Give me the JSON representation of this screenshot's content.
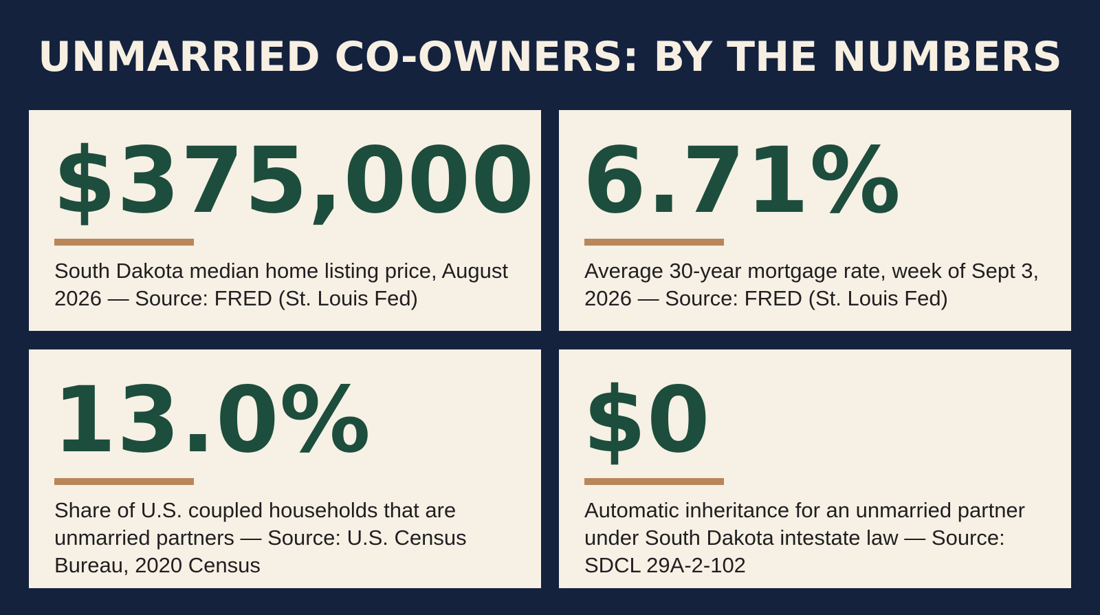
{
  "header": {
    "title": "UNMARRIED CO-OWNERS: BY THE NUMBERS"
  },
  "stats": [
    {
      "value": "$375,000",
      "description": "South Dakota median home listing price, August 2026 — Source: FRED (St. Louis Fed)"
    },
    {
      "value": "6.71%",
      "description": "Average 30-year mortgage rate, week of Sept 3, 2026 — Source: FRED (St. Louis Fed)"
    },
    {
      "value": "13.0%",
      "description": "Share of U.S. coupled households that are unmarried partners — Source: U.S. Census Bureau, 2020 Census"
    },
    {
      "value": "$0",
      "description": "Automatic inheritance for an unmarried partner under South Dakota intestate law — Source: SDCL 29A-2-102"
    }
  ],
  "colors": {
    "background": "#14223e",
    "card": "#f7f0e4",
    "figure": "#1d4d3d",
    "accent_rule": "#b8865a",
    "title": "#f7efe2"
  }
}
